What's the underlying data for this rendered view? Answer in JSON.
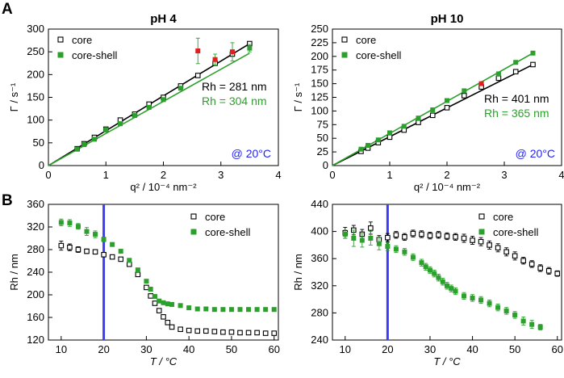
{
  "panel_labels": [
    "A",
    "B"
  ],
  "colors": {
    "core": "#000000",
    "core_shell": "#2ca02c",
    "outlier": "#e02020",
    "temp": "#2020ff",
    "vline": "#3b3bff"
  },
  "chart_data": [
    {
      "id": "A1",
      "type": "scatter",
      "title": "pH 4",
      "xlabel": "q² / 10⁻⁴ nm⁻²",
      "ylabel": "Γ / s⁻¹",
      "xlim": [
        0,
        4
      ],
      "ylim": [
        0,
        300
      ],
      "xticks": [
        0,
        1,
        2,
        3,
        4
      ],
      "yticks": [
        0,
        50,
        100,
        150,
        200,
        250,
        300
      ],
      "legend": [
        "core",
        "core-shell"
      ],
      "annotations": [
        {
          "text": "Rh = 281 nm",
          "color": "#000000"
        },
        {
          "text": "Rh = 304 nm",
          "color": "#2ca02c"
        },
        {
          "text": "@ 20°C",
          "color": "#2020ff"
        }
      ],
      "series": [
        {
          "name": "core",
          "marker": "open-square",
          "x": [
            0.5,
            0.62,
            0.8,
            1.0,
            1.25,
            1.5,
            1.75,
            2.0,
            2.3,
            2.6,
            2.9,
            3.2,
            3.5
          ],
          "y": [
            37,
            48,
            62,
            80,
            100,
            113,
            135,
            150,
            175,
            198,
            225,
            245,
            268
          ]
        },
        {
          "name": "core-shell",
          "marker": "filled-square",
          "x": [
            0.5,
            0.62,
            0.8,
            1.0,
            1.25,
            1.5,
            1.75,
            2.0,
            2.3,
            2.6,
            2.9,
            3.2,
            3.5
          ],
          "y": [
            36,
            46,
            58,
            78,
            92,
            110,
            128,
            145,
            170,
            252,
            233,
            250,
            258
          ],
          "yerr": [
            0,
            0,
            0,
            0,
            0,
            0,
            0,
            0,
            0,
            28,
            12,
            20,
            8
          ],
          "outlier_indices": [
            9,
            10,
            11
          ]
        },
        {
          "name": "core fit",
          "type": "line",
          "x": [
            0,
            3.5
          ],
          "y": [
            0,
            268
          ]
        },
        {
          "name": "core-shell fit",
          "type": "line",
          "x": [
            0,
            3.5
          ],
          "y": [
            0,
            247
          ]
        }
      ]
    },
    {
      "id": "A2",
      "type": "scatter",
      "title": "pH 10",
      "xlabel": "q² / 10⁻⁴ nm⁻²",
      "ylabel": "Γ / s⁻¹",
      "xlim": [
        0,
        4
      ],
      "ylim": [
        0,
        250
      ],
      "xticks": [
        0,
        1,
        2,
        3,
        4
      ],
      "yticks": [
        0,
        25,
        50,
        75,
        100,
        125,
        150,
        175,
        200,
        225,
        250
      ],
      "legend": [
        "core",
        "core-shell"
      ],
      "annotations": [
        {
          "text": "Rh = 401 nm",
          "color": "#000000"
        },
        {
          "text": "Rh = 365 nm",
          "color": "#2ca02c"
        },
        {
          "text": "@ 20°C",
          "color": "#2020ff"
        }
      ],
      "series": [
        {
          "name": "core",
          "marker": "open-square",
          "x": [
            0.5,
            0.62,
            0.8,
            1.0,
            1.25,
            1.5,
            1.75,
            2.0,
            2.3,
            2.6,
            2.9,
            3.2,
            3.5
          ],
          "y": [
            26,
            32,
            42,
            52,
            65,
            79,
            92,
            106,
            128,
            144,
            160,
            172,
            185
          ]
        },
        {
          "name": "core-shell",
          "marker": "filled-square",
          "x": [
            0.5,
            0.62,
            0.8,
            1.0,
            1.25,
            1.5,
            1.75,
            2.0,
            2.3,
            2.6,
            2.9,
            3.2,
            3.5
          ],
          "y": [
            30,
            37,
            47,
            60,
            72,
            87,
            102,
            119,
            137,
            150,
            168,
            189,
            206
          ],
          "outlier_indices": [
            9
          ]
        },
        {
          "name": "core fit",
          "type": "line",
          "x": [
            0,
            3.5
          ],
          "y": [
            0,
            185
          ]
        },
        {
          "name": "core-shell fit",
          "type": "line",
          "x": [
            0,
            3.5
          ],
          "y": [
            0,
            206
          ]
        }
      ]
    },
    {
      "id": "B1",
      "type": "scatter",
      "title": "",
      "xlabel": "T / °C",
      "ylabel": "Rh / nm",
      "xlim": [
        7,
        61
      ],
      "ylim": [
        120,
        360
      ],
      "xticks": [
        10,
        20,
        30,
        40,
        50,
        60
      ],
      "yticks": [
        120,
        160,
        200,
        240,
        280,
        320,
        360
      ],
      "legend": [
        "core",
        "core-shell"
      ],
      "vline_x": 20,
      "series": [
        {
          "name": "core",
          "marker": "open-square",
          "x": [
            10,
            12,
            14,
            16,
            18,
            20,
            22,
            24,
            26,
            28,
            30,
            31,
            32,
            33,
            34,
            35,
            36,
            38,
            40,
            42,
            44,
            46,
            48,
            50,
            52,
            54,
            56,
            58,
            60
          ],
          "y": [
            287,
            284,
            280,
            277,
            276,
            271,
            267,
            263,
            254,
            236,
            213,
            198,
            185,
            172,
            161,
            151,
            143,
            139,
            137,
            136,
            136,
            135,
            134,
            134,
            133,
            133,
            133,
            132,
            132
          ],
          "yerr": [
            8,
            6,
            5,
            4,
            4,
            4,
            3,
            3,
            3,
            3,
            3,
            3,
            3,
            3,
            3,
            3,
            3,
            2,
            2,
            2,
            2,
            2,
            2,
            2,
            2,
            2,
            2,
            2,
            2
          ]
        },
        {
          "name": "core-shell",
          "marker": "filled-square",
          "x": [
            10,
            12,
            14,
            16,
            18,
            20,
            22,
            24,
            26,
            28,
            30,
            31,
            32,
            33,
            34,
            35,
            36,
            38,
            40,
            42,
            44,
            46,
            48,
            50,
            52,
            54,
            56,
            58,
            60
          ],
          "y": [
            328,
            327,
            321,
            312,
            307,
            298,
            289,
            277,
            261,
            244,
            224,
            210,
            197,
            189,
            186,
            184,
            183,
            181,
            177,
            175,
            175,
            174,
            174,
            174,
            174,
            174,
            174,
            174,
            174
          ],
          "yerr": [
            6,
            6,
            5,
            7,
            6,
            4,
            3,
            3,
            3,
            3,
            3,
            3,
            3,
            3,
            3,
            3,
            3,
            2,
            2,
            2,
            2,
            2,
            2,
            2,
            2,
            2,
            2,
            2,
            2
          ]
        }
      ]
    },
    {
      "id": "B2",
      "type": "scatter",
      "title": "",
      "xlabel": "T / °C",
      "ylabel": "Rh / nm",
      "xlim": [
        7,
        61
      ],
      "ylim": [
        240,
        440
      ],
      "xticks": [
        10,
        20,
        30,
        40,
        50,
        60
      ],
      "yticks": [
        240,
        280,
        320,
        360,
        400,
        440
      ],
      "legend": [
        "core",
        "core-shell"
      ],
      "vline_x": 20,
      "series": [
        {
          "name": "core",
          "marker": "open-square",
          "x": [
            10,
            12,
            14,
            16,
            18,
            20,
            22,
            24,
            26,
            28,
            30,
            32,
            34,
            36,
            38,
            40,
            42,
            44,
            46,
            48,
            50,
            52,
            54,
            56,
            58,
            60
          ],
          "y": [
            398,
            402,
            396,
            405,
            388,
            391,
            395,
            392,
            397,
            396,
            394,
            395,
            393,
            392,
            390,
            387,
            385,
            380,
            376,
            370,
            364,
            357,
            352,
            346,
            342,
            338
          ],
          "yerr": [
            8,
            7,
            7,
            9,
            6,
            6,
            5,
            5,
            5,
            5,
            5,
            5,
            5,
            5,
            6,
            6,
            6,
            6,
            6,
            6,
            6,
            5,
            5,
            5,
            5,
            4
          ]
        },
        {
          "name": "core-shell",
          "marker": "filled-square",
          "x": [
            10,
            12,
            14,
            16,
            18,
            20,
            22,
            24,
            26,
            28,
            29,
            30,
            31,
            32,
            33,
            34,
            35,
            36,
            38,
            40,
            42,
            44,
            46,
            48,
            50,
            52,
            54,
            56
          ],
          "y": [
            396,
            390,
            387,
            390,
            382,
            378,
            374,
            370,
            362,
            354,
            348,
            343,
            338,
            332,
            326,
            320,
            316,
            312,
            305,
            302,
            299,
            294,
            288,
            283,
            277,
            268,
            263,
            259
          ],
          "yerr": [
            6,
            12,
            10,
            10,
            9,
            6,
            5,
            5,
            5,
            5,
            5,
            5,
            5,
            5,
            5,
            5,
            5,
            5,
            5,
            5,
            5,
            5,
            5,
            5,
            5,
            6,
            6,
            4
          ]
        }
      ]
    }
  ]
}
